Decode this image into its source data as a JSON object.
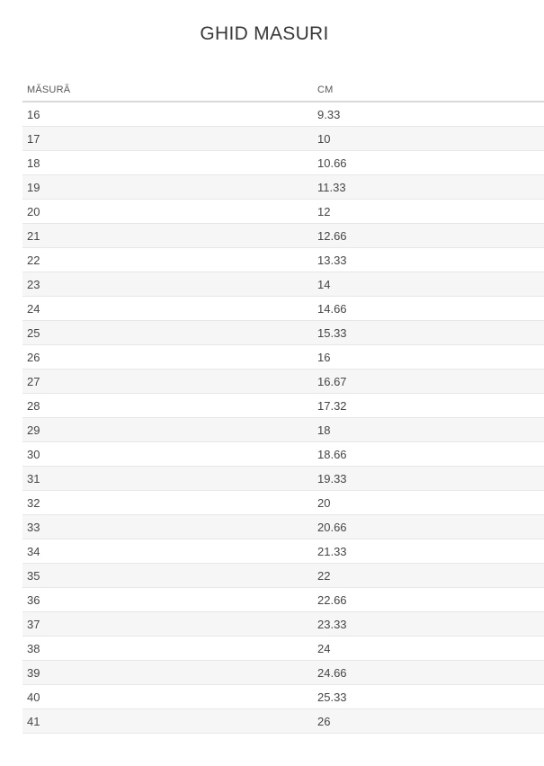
{
  "page": {
    "title": "GHID MASURI"
  },
  "table": {
    "column_headers": [
      "MĂSURĂ",
      "CM"
    ],
    "rows": [
      [
        "16",
        "9.33"
      ],
      [
        "17",
        "10"
      ],
      [
        "18",
        "10.66"
      ],
      [
        "19",
        "11.33"
      ],
      [
        "20",
        "12"
      ],
      [
        "21",
        "12.66"
      ],
      [
        "22",
        "13.33"
      ],
      [
        "23",
        "14"
      ],
      [
        "24",
        "14.66"
      ],
      [
        "25",
        "15.33"
      ],
      [
        "26",
        "16"
      ],
      [
        "27",
        "16.67"
      ],
      [
        "28",
        "17.32"
      ],
      [
        "29",
        "18"
      ],
      [
        "30",
        "18.66"
      ],
      [
        "31",
        "19.33"
      ],
      [
        "32",
        "20"
      ],
      [
        "33",
        "20.66"
      ],
      [
        "34",
        "21.33"
      ],
      [
        "35",
        "22"
      ],
      [
        "36",
        "22.66"
      ],
      [
        "37",
        "23.33"
      ],
      [
        "38",
        "24"
      ],
      [
        "39",
        "24.66"
      ],
      [
        "40",
        "25.33"
      ],
      [
        "41",
        "26"
      ]
    ]
  },
  "colors": {
    "background": "#ffffff",
    "title_text": "#383838",
    "header_text": "#575757",
    "cell_text": "#464646",
    "header_border": "#d9d9d9",
    "row_border": "#e7e7e7",
    "row_alt_background": "#f6f6f6"
  }
}
